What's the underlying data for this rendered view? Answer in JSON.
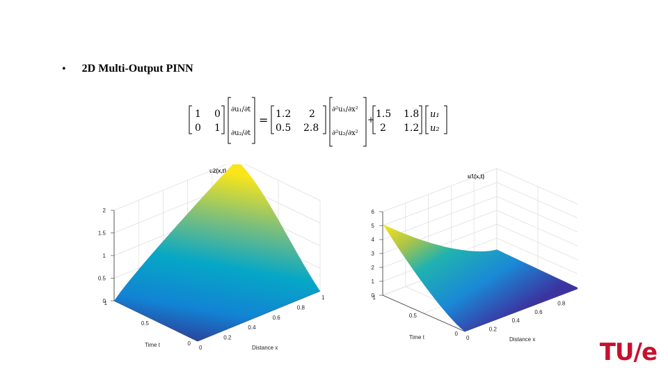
{
  "slide": {
    "bullet": "•",
    "heading": "2D Multi-Output  PINN",
    "logo": "TU/e"
  },
  "equation": {
    "lhs_matrix": [
      [
        "1",
        "0"
      ],
      [
        "0",
        "1"
      ]
    ],
    "lhs_vector": [
      "∂u₁/∂t",
      "∂u₂/∂t"
    ],
    "equals": "=",
    "diff_matrix": [
      [
        "1.2",
        "2"
      ],
      [
        "0.5",
        "2.8"
      ]
    ],
    "diff_vector": [
      "∂²u₁/∂x²",
      "∂²u₂/∂x²"
    ],
    "plus": "+",
    "react_matrix": [
      [
        "1.5",
        "1.8"
      ],
      [
        "2",
        "1.2"
      ]
    ],
    "state_vector": [
      "u₁",
      "u₂"
    ]
  },
  "chart_data": [
    {
      "type": "surface",
      "title": "u2(x,t)",
      "xlabel": "Distance x",
      "ylabel": "Time t",
      "x_ticks": [
        "0",
        "0.2",
        "0.4",
        "0.6",
        "0.8",
        "1"
      ],
      "t_ticks": [
        "0",
        "0.5",
        "1"
      ],
      "z_ticks": [
        "0",
        "0.5",
        "1",
        "1.5",
        "2"
      ],
      "zlim": [
        0,
        2
      ],
      "corner_values": {
        "x0_t0": 0,
        "x1_t0": 0,
        "x0_t1": 0,
        "x1_t1": 2.0
      },
      "colormap": "parula"
    },
    {
      "type": "surface",
      "title": "u1(x,t)",
      "xlabel": "Distance x",
      "ylabel": "Time t",
      "x_ticks": [
        "0",
        "0.2",
        "0.4",
        "0.6",
        "0.8",
        "1"
      ],
      "t_ticks": [
        "0",
        "0.5",
        "1"
      ],
      "z_ticks": [
        "0",
        "1",
        "2",
        "3",
        "4",
        "5",
        "6"
      ],
      "zlim": [
        0,
        6
      ],
      "corner_values": {
        "x0_t0": 0,
        "x1_t0": 0,
        "x0_t1": 5.1,
        "x1_t1": 0.3
      },
      "colormap": "parula"
    }
  ]
}
